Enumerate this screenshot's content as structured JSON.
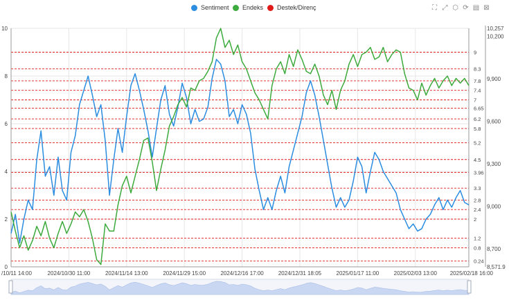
{
  "legend": {
    "items": [
      {
        "label": "Sentiment",
        "color": "#2a8de0"
      },
      {
        "label": "Endeks",
        "color": "#3caa3c"
      },
      {
        "label": "Destek/Direnç",
        "color": "#e01919"
      }
    ]
  },
  "toolbox": {
    "icons": [
      "zoom-icon",
      "zoom-reset-icon",
      "restore-icon",
      "refresh-icon",
      "data-view-icon",
      "save-image-icon"
    ]
  },
  "chart_data": {
    "type": "line",
    "x_ticks": [
      "/10/11 14:00",
      "2024/10/30 11:00",
      "2024/11/14 13:00",
      "2024/11/29 15:00",
      "2024/12/16 17:00",
      "2024/12/31 18:05",
      "2025/01/17 11:00",
      "2025/02/03 13:00",
      "2025/02/18 16:00"
    ],
    "left_axis": {
      "min": 0,
      "max": 10,
      "ticks": [
        "0",
        "2",
        "4",
        "6",
        "8",
        "10"
      ]
    },
    "right_axis": {
      "min": 8571.9,
      "max": 10257,
      "ticks": [
        "8,571.9",
        "8,700",
        "9,000",
        "9,300",
        "9,600",
        "9,900",
        "10,200",
        "10,257"
      ]
    },
    "support_resistance": [
      "0.24",
      "0.8",
      "1.2",
      "2",
      "2.4",
      "2.8",
      "3.3",
      "3.96",
      "4.5",
      "5.2",
      "5.8",
      "6.2",
      "6.65",
      "7",
      "7.4",
      "7.8",
      "8.3",
      "9"
    ],
    "series": [
      {
        "name": "Sentiment",
        "axis": "left",
        "color": "#2a8de0",
        "points": [
          [
            0,
            1.4
          ],
          [
            2,
            2.2
          ],
          [
            4,
            1.0
          ],
          [
            6,
            2.0
          ],
          [
            8,
            2.8
          ],
          [
            10,
            2.4
          ],
          [
            12,
            4.5
          ],
          [
            14,
            5.7
          ],
          [
            16,
            3.8
          ],
          [
            18,
            4.2
          ],
          [
            20,
            3.0
          ],
          [
            22,
            4.6
          ],
          [
            24,
            3.2
          ],
          [
            26,
            2.8
          ],
          [
            28,
            4.8
          ],
          [
            30,
            5.5
          ],
          [
            32,
            6.8
          ],
          [
            34,
            7.4
          ],
          [
            36,
            8.0
          ],
          [
            38,
            7.2
          ],
          [
            40,
            6.3
          ],
          [
            42,
            6.8
          ],
          [
            44,
            5.3
          ],
          [
            46,
            3.0
          ],
          [
            48,
            4.5
          ],
          [
            50,
            5.8
          ],
          [
            52,
            4.8
          ],
          [
            54,
            6.3
          ],
          [
            56,
            7.6
          ],
          [
            58,
            8.1
          ],
          [
            60,
            7.4
          ],
          [
            62,
            6.6
          ],
          [
            64,
            5.7
          ],
          [
            66,
            4.6
          ],
          [
            68,
            5.8
          ],
          [
            70,
            7.0
          ],
          [
            72,
            7.6
          ],
          [
            74,
            6.4
          ],
          [
            76,
            5.9
          ],
          [
            78,
            6.7
          ],
          [
            80,
            7.7
          ],
          [
            82,
            7.1
          ],
          [
            84,
            6.0
          ],
          [
            86,
            6.6
          ],
          [
            88,
            6.1
          ],
          [
            90,
            6.2
          ],
          [
            92,
            6.7
          ],
          [
            94,
            7.9
          ],
          [
            96,
            8.7
          ],
          [
            98,
            8.5
          ],
          [
            100,
            7.8
          ],
          [
            102,
            6.3
          ],
          [
            104,
            6.6
          ],
          [
            106,
            6.0
          ],
          [
            108,
            6.8
          ],
          [
            110,
            6.4
          ],
          [
            112,
            5.6
          ],
          [
            114,
            4.1
          ],
          [
            116,
            3.2
          ],
          [
            118,
            2.4
          ],
          [
            120,
            2.9
          ],
          [
            122,
            2.4
          ],
          [
            124,
            3.2
          ],
          [
            126,
            3.8
          ],
          [
            128,
            3.1
          ],
          [
            130,
            4.2
          ],
          [
            132,
            4.9
          ],
          [
            134,
            5.6
          ],
          [
            136,
            6.3
          ],
          [
            138,
            7.3
          ],
          [
            140,
            7.8
          ],
          [
            142,
            7.2
          ],
          [
            144,
            6.3
          ],
          [
            146,
            5.3
          ],
          [
            148,
            4.3
          ],
          [
            150,
            3.3
          ],
          [
            152,
            2.5
          ],
          [
            154,
            2.9
          ],
          [
            156,
            2.5
          ],
          [
            158,
            2.8
          ],
          [
            160,
            3.6
          ],
          [
            162,
            4.6
          ],
          [
            164,
            4.2
          ],
          [
            166,
            3.1
          ],
          [
            168,
            4.0
          ],
          [
            170,
            4.8
          ],
          [
            172,
            4.5
          ],
          [
            174,
            4.0
          ],
          [
            176,
            3.7
          ],
          [
            178,
            3.4
          ],
          [
            180,
            3.1
          ],
          [
            182,
            2.4
          ],
          [
            184,
            2.0
          ],
          [
            186,
            1.6
          ],
          [
            188,
            1.8
          ],
          [
            190,
            1.5
          ],
          [
            192,
            1.6
          ],
          [
            194,
            2.0
          ],
          [
            196,
            2.2
          ],
          [
            198,
            2.6
          ],
          [
            200,
            2.9
          ],
          [
            202,
            2.4
          ],
          [
            204,
            2.8
          ],
          [
            206,
            2.5
          ],
          [
            208,
            2.9
          ],
          [
            210,
            3.2
          ],
          [
            212,
            2.7
          ],
          [
            214,
            2.6
          ]
        ]
      },
      {
        "name": "Endeks",
        "axis": "left",
        "color": "#3caa3c",
        "points": [
          [
            0,
            2.3
          ],
          [
            2,
            1.5
          ],
          [
            4,
            0.8
          ],
          [
            6,
            1.3
          ],
          [
            8,
            0.7
          ],
          [
            10,
            1.1
          ],
          [
            12,
            1.7
          ],
          [
            14,
            1.3
          ],
          [
            16,
            1.9
          ],
          [
            18,
            1.2
          ],
          [
            20,
            0.8
          ],
          [
            22,
            1.4
          ],
          [
            24,
            1.9
          ],
          [
            26,
            1.4
          ],
          [
            28,
            1.8
          ],
          [
            30,
            2.3
          ],
          [
            32,
            2.1
          ],
          [
            34,
            2.4
          ],
          [
            36,
            1.9
          ],
          [
            38,
            1.2
          ],
          [
            40,
            0.3
          ],
          [
            42,
            0.1
          ],
          [
            44,
            1.8
          ],
          [
            46,
            1.5
          ],
          [
            48,
            1.5
          ],
          [
            50,
            2.6
          ],
          [
            52,
            3.4
          ],
          [
            54,
            3.8
          ],
          [
            56,
            3.1
          ],
          [
            58,
            3.8
          ],
          [
            60,
            4.5
          ],
          [
            62,
            5.3
          ],
          [
            64,
            5.4
          ],
          [
            66,
            4.4
          ],
          [
            68,
            3.2
          ],
          [
            70,
            4.1
          ],
          [
            72,
            4.9
          ],
          [
            74,
            5.9
          ],
          [
            76,
            6.3
          ],
          [
            78,
            6.8
          ],
          [
            80,
            7.1
          ],
          [
            82,
            6.7
          ],
          [
            84,
            7.5
          ],
          [
            86,
            7.4
          ],
          [
            88,
            7.8
          ],
          [
            90,
            7.9
          ],
          [
            92,
            8.2
          ],
          [
            94,
            8.6
          ],
          [
            96,
            9.6
          ],
          [
            98,
            10.0
          ],
          [
            100,
            9.2
          ],
          [
            102,
            9.5
          ],
          [
            104,
            8.9
          ],
          [
            106,
            9.3
          ],
          [
            108,
            8.6
          ],
          [
            110,
            8.3
          ],
          [
            112,
            7.8
          ],
          [
            114,
            7.3
          ],
          [
            116,
            7.0
          ],
          [
            118,
            6.6
          ],
          [
            120,
            6.2
          ],
          [
            122,
            7.6
          ],
          [
            124,
            8.3
          ],
          [
            126,
            8.6
          ],
          [
            128,
            8.1
          ],
          [
            130,
            8.9
          ],
          [
            132,
            8.4
          ],
          [
            134,
            9.1
          ],
          [
            136,
            8.7
          ],
          [
            138,
            8.2
          ],
          [
            140,
            8.1
          ],
          [
            142,
            8.5
          ],
          [
            144,
            8.0
          ],
          [
            146,
            7.2
          ],
          [
            148,
            6.8
          ],
          [
            150,
            7.4
          ],
          [
            152,
            6.6
          ],
          [
            154,
            7.4
          ],
          [
            156,
            7.8
          ],
          [
            158,
            8.5
          ],
          [
            160,
            8.9
          ],
          [
            162,
            8.4
          ],
          [
            164,
            8.9
          ],
          [
            166,
            9.0
          ],
          [
            168,
            9.2
          ],
          [
            170,
            8.7
          ],
          [
            172,
            8.8
          ],
          [
            174,
            9.2
          ],
          [
            176,
            8.6
          ],
          [
            178,
            8.9
          ],
          [
            180,
            9.1
          ],
          [
            182,
            9.0
          ],
          [
            184,
            8.1
          ],
          [
            186,
            7.5
          ],
          [
            188,
            7.4
          ],
          [
            190,
            7.0
          ],
          [
            192,
            7.7
          ],
          [
            194,
            7.2
          ],
          [
            196,
            7.6
          ],
          [
            198,
            7.9
          ],
          [
            200,
            7.5
          ],
          [
            202,
            7.8
          ],
          [
            204,
            8.0
          ],
          [
            206,
            7.6
          ],
          [
            208,
            7.9
          ],
          [
            210,
            7.7
          ],
          [
            212,
            7.9
          ],
          [
            214,
            7.6
          ]
        ]
      }
    ]
  }
}
